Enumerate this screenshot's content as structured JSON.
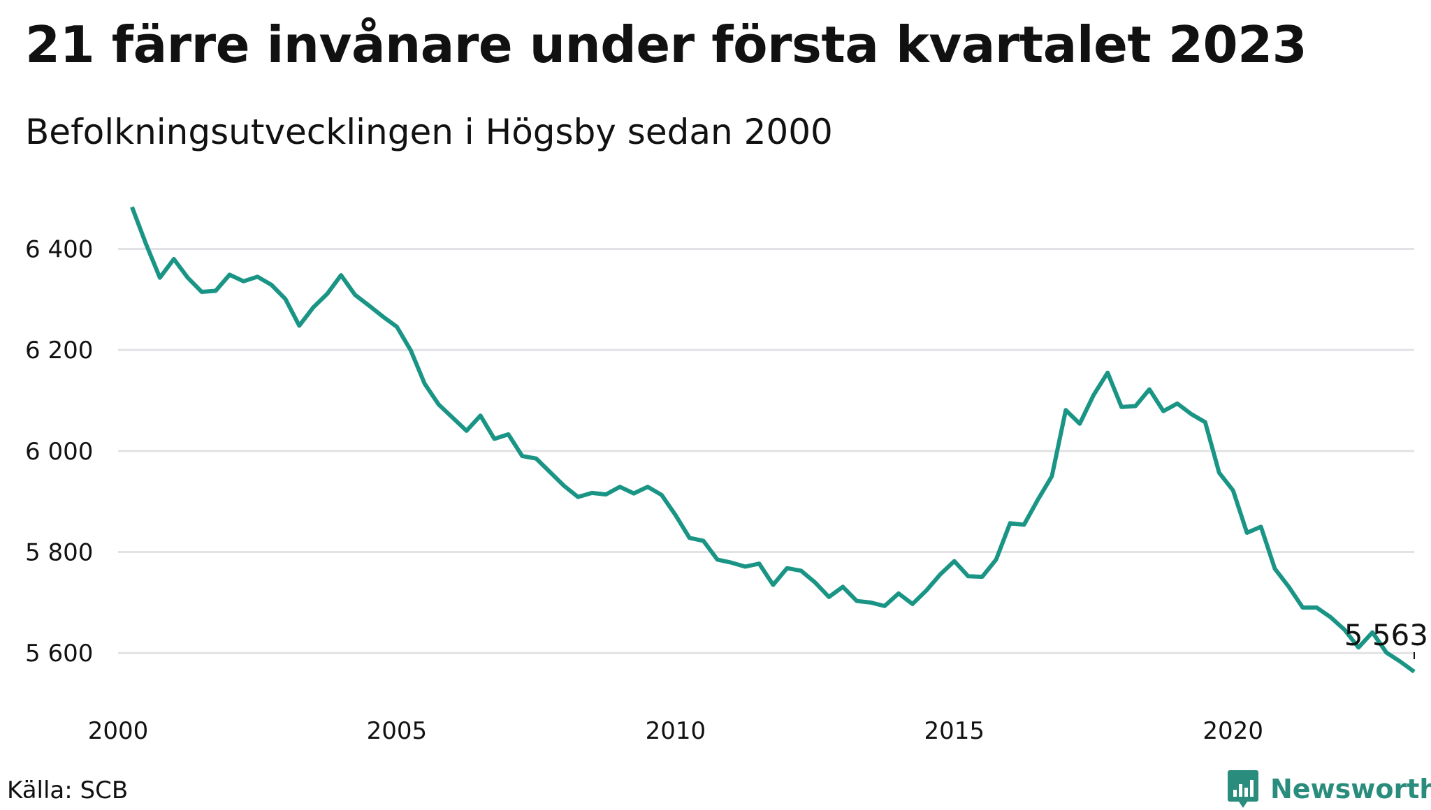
{
  "header": {
    "title": "21 färre invånare under första kvartalet 2023",
    "subtitle": "Befolkningsutvecklingen i Högsby sedan 2000"
  },
  "footer": {
    "source": "Källa: SCB",
    "brand": "Newsworthy",
    "brand_icon": "bar-chart-speech-bubble-icon"
  },
  "colors": {
    "line": "#1a9585",
    "grid": "#e2e2e6",
    "text": "#111111",
    "brand": "#2a8c7c"
  },
  "chart_data": {
    "type": "line",
    "title": "21 färre invånare under första kvartalet 2023",
    "subtitle": "Befolkningsutvecklingen i Högsby sedan 2000",
    "xlabel": "",
    "ylabel": "",
    "x_ticks": [
      2000,
      2005,
      2010,
      2015,
      2020
    ],
    "x_tick_labels": [
      "2000",
      "2005",
      "2010",
      "2015",
      "2020"
    ],
    "y_ticks": [
      5600,
      5800,
      6000,
      6200,
      6400
    ],
    "y_tick_labels": [
      "5 600",
      "5 800",
      "6 000",
      "6 200",
      "6 400"
    ],
    "xlim": [
      2000,
      2023.25
    ],
    "ylim": [
      5545,
      6485
    ],
    "grid": "horizontal",
    "end_label": "5 563",
    "series": [
      {
        "x": [
          2000.25,
          2000.5,
          2000.75,
          2001,
          2001.25,
          2001.5,
          2001.75,
          2002,
          2002.25,
          2002.5,
          2002.75,
          2003,
          2003.25,
          2003.5,
          2003.75,
          2004,
          2004.25,
          2004.5,
          2004.75,
          2005,
          2005.25,
          2005.5,
          2005.75,
          2006,
          2006.25,
          2006.5,
          2006.75,
          2007,
          2007.25,
          2007.5,
          2007.75,
          2008,
          2008.25,
          2008.5,
          2008.75,
          2009,
          2009.25,
          2009.5,
          2009.75,
          2010,
          2010.25,
          2010.5,
          2010.75,
          2011,
          2011.25,
          2011.5,
          2011.75,
          2012,
          2012.25,
          2012.5,
          2012.75,
          2013,
          2013.25,
          2013.5,
          2013.75,
          2014,
          2014.25,
          2014.5,
          2014.75,
          2015,
          2015.25,
          2015.5,
          2015.75,
          2016,
          2016.25,
          2016.5,
          2016.75,
          2017,
          2017.25,
          2017.5,
          2017.75,
          2018,
          2018.25,
          2018.5,
          2018.75,
          2019,
          2019.25,
          2019.5,
          2019.75,
          2020,
          2020.25,
          2020.5,
          2020.75,
          2021,
          2021.25,
          2021.5,
          2021.75,
          2022,
          2022.25,
          2022.5,
          2022.75,
          2023,
          2023.25
        ],
        "values": [
          6483,
          6410,
          6343,
          6380,
          6343,
          6315,
          6317,
          6349,
          6336,
          6345,
          6329,
          6301,
          6248,
          6284,
          6311,
          6348,
          6309,
          6288,
          6266,
          6246,
          6199,
          6133,
          6092,
          6066,
          6040,
          6070,
          6024,
          6033,
          5990,
          5985,
          5958,
          5931,
          5909,
          5917,
          5914,
          5929,
          5916,
          5929,
          5913,
          5873,
          5828,
          5822,
          5785,
          5779,
          5771,
          5777,
          5735,
          5768,
          5763,
          5740,
          5711,
          5731,
          5703,
          5700,
          5693,
          5718,
          5697,
          5724,
          5756,
          5782,
          5752,
          5751,
          5785,
          5857,
          5854,
          5904,
          5950,
          6081,
          6054,
          6111,
          6155,
          6087,
          6089,
          6122,
          6079,
          6094,
          6073,
          6057,
          5957,
          5922,
          5838,
          5850,
          5767,
          5731,
          5690,
          5690,
          5671,
          5646,
          5611,
          5641,
          5601,
          5583,
          5563
        ]
      }
    ]
  }
}
